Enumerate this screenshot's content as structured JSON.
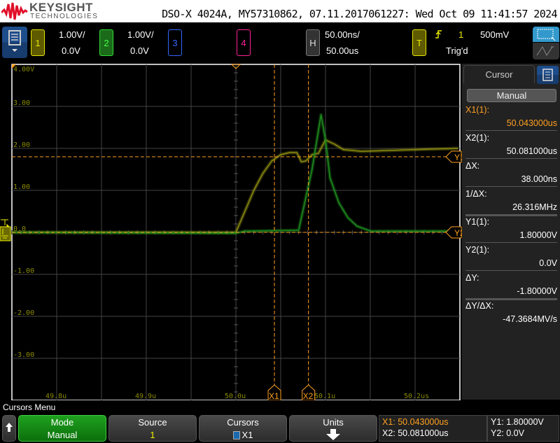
{
  "header": {
    "brand": "KEYSIGHT",
    "brand_sub": "TECHNOLOGIES",
    "title": "DSO-X 4024A, MY57310862, 07.11.2017061227: Wed Oct 09 11:41:57 2024"
  },
  "channels": [
    {
      "num": "1",
      "scale": "1.00V/",
      "offset": "0.0V",
      "color": "#e6e600"
    },
    {
      "num": "2",
      "scale": "1.00V/",
      "offset": "0.0V",
      "color": "#33dd33"
    },
    {
      "num": "3",
      "color": "#3366ff"
    },
    {
      "num": "4",
      "color": "#ff2299"
    }
  ],
  "horizontal": {
    "label": "H",
    "scale": "50.00ns/",
    "delay": "50.00us"
  },
  "trigger": {
    "label": "T",
    "source": "1",
    "level": "500mV",
    "status": "Trig'd",
    "slope_icon": "rising-edge-icon"
  },
  "graticule": {
    "y_labels": [
      "4.00V",
      "3.00",
      "2.00",
      "1.00",
      "0.0",
      "-1.00",
      "-2.00",
      "-3.00"
    ],
    "x_labels": [
      "49.8u",
      "49.9u",
      "50.0u",
      "50.1u",
      "50.2us"
    ],
    "cursor_labels": {
      "x1": "X1",
      "x2": "X2",
      "y1": "Y1",
      "y2": "Y2"
    },
    "cursor_color": "#ffa020"
  },
  "traces": {
    "time_unit": "us",
    "volt_unit": "V",
    "ch1": [
      [
        49.75,
        0
      ],
      [
        50.0,
        0
      ],
      [
        50.01,
        0.5
      ],
      [
        50.02,
        1.0
      ],
      [
        50.03,
        1.4
      ],
      [
        50.04,
        1.7
      ],
      [
        50.05,
        1.85
      ],
      [
        50.06,
        1.9
      ],
      [
        50.068,
        1.9
      ],
      [
        50.073,
        1.68
      ],
      [
        50.078,
        1.7
      ],
      [
        50.085,
        1.85
      ],
      [
        50.092,
        1.88
      ],
      [
        50.1,
        2.2
      ],
      [
        50.11,
        2.1
      ],
      [
        50.12,
        1.97
      ],
      [
        50.14,
        1.93
      ],
      [
        50.2,
        1.97
      ],
      [
        50.248,
        2.0
      ]
    ],
    "ch2": [
      [
        49.75,
        0
      ],
      [
        50.0,
        -0.02
      ],
      [
        50.01,
        0.03
      ],
      [
        50.07,
        0.05
      ],
      [
        50.085,
        1.5
      ],
      [
        50.095,
        2.8
      ],
      [
        50.1,
        2.2
      ],
      [
        50.105,
        1.3
      ],
      [
        50.115,
        0.7
      ],
      [
        50.125,
        0.35
      ],
      [
        50.135,
        0.15
      ],
      [
        50.15,
        0.03
      ],
      [
        50.248,
        0.03
      ]
    ],
    "cursors": {
      "x1": 50.043,
      "x2": 50.081,
      "y1": 1.8,
      "y2": 0.0
    }
  },
  "panel": {
    "tab": "Cursor",
    "mode": "Manual",
    "rows": [
      {
        "label": "X1(1):",
        "value": "50.043000us"
      },
      {
        "label": "X2(1):",
        "value": "50.081000us"
      },
      {
        "label": "ΔX:",
        "value": "38.000ns"
      },
      {
        "label": "1/ΔX:",
        "value": "26.316MHz"
      },
      {
        "label": "Y1(1):",
        "value": "1.80000V"
      },
      {
        "label": "Y2(1):",
        "value": "0.0V"
      },
      {
        "label": "ΔY:",
        "value": "-1.80000V"
      },
      {
        "label": "ΔY/ΔX:",
        "value": "-47.3684MV/s"
      }
    ]
  },
  "menu": {
    "title": "Cursors Menu",
    "mode": {
      "label": "Mode",
      "value": "Manual"
    },
    "source": {
      "label": "Source",
      "value": "1"
    },
    "cursors": {
      "label": "Cursors",
      "value": "X1"
    },
    "units": {
      "label": "Units"
    },
    "readout": {
      "x1": "X1: 50.043000us",
      "x2": "X2: 50.081000us",
      "y1": "Y1: 1.80000V",
      "y2": "Y2: 0.0V"
    }
  }
}
